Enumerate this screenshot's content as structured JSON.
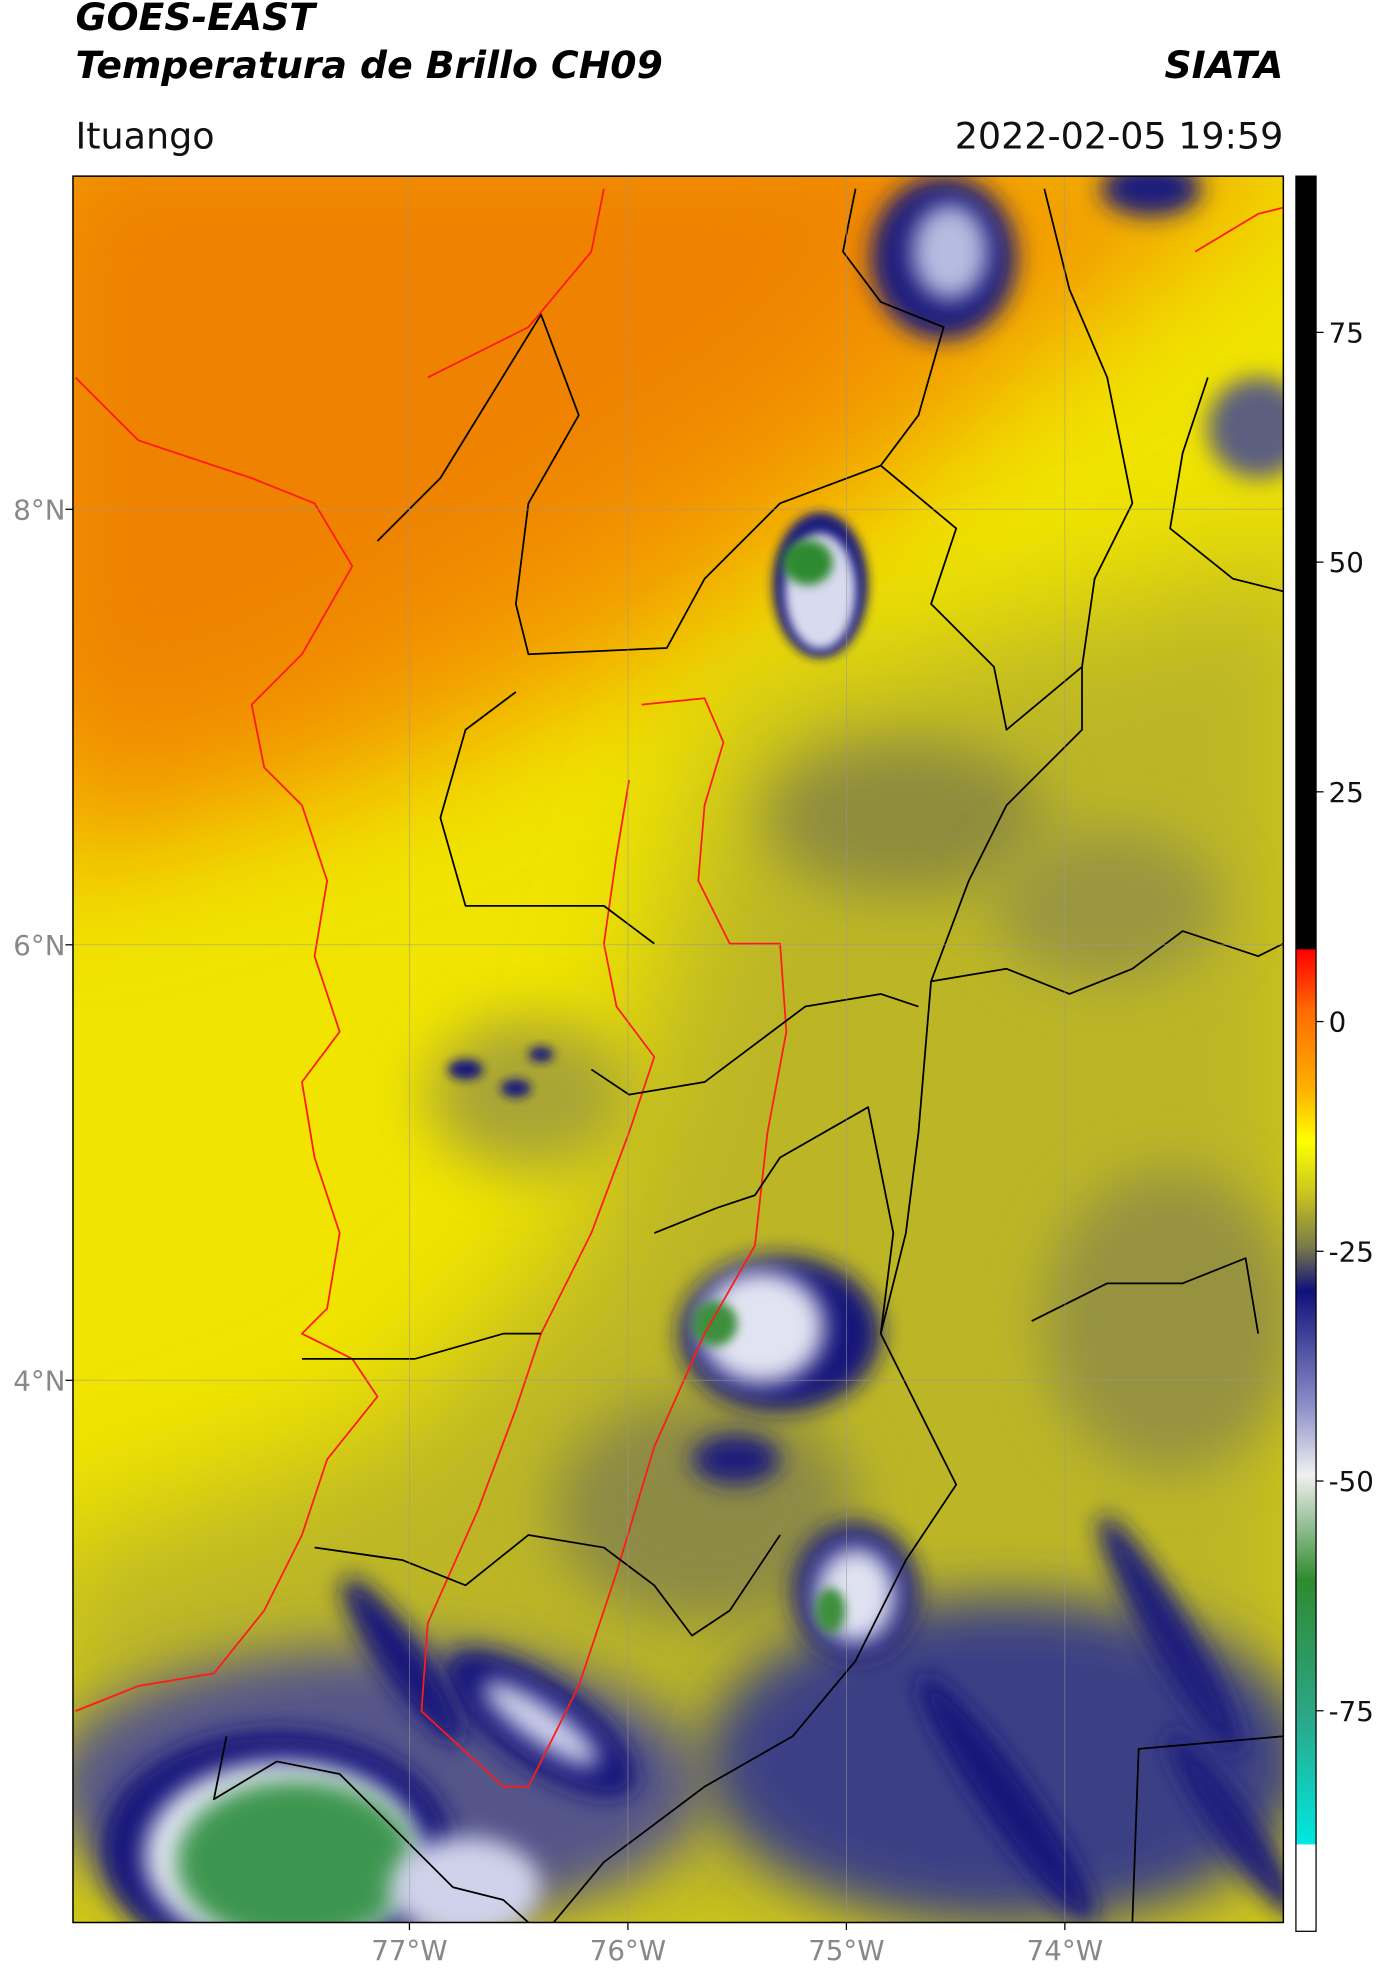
{
  "chart_data": {
    "type": "map",
    "satellite": "GOES-EAST",
    "title": "Temperatura de Brillo CH09",
    "source": "SIATA",
    "location": "Ituango",
    "timestamp": "2022-02-05 19:59",
    "xlim": [
      -78.54,
      -73.0
    ],
    "ylim": [
      1.51,
      9.53
    ],
    "xticks": [
      {
        "value": -77,
        "label": "77°W"
      },
      {
        "value": -76,
        "label": "76°W"
      },
      {
        "value": -75,
        "label": "75°W"
      },
      {
        "value": -74,
        "label": "74°W"
      }
    ],
    "yticks": [
      {
        "value": 4,
        "label": "4°N"
      },
      {
        "value": 6,
        "label": "6°N"
      },
      {
        "value": 8,
        "label": "8°N"
      }
    ],
    "grid": true,
    "colorbar": {
      "lim": [
        -99,
        92
      ],
      "ticks": [
        -75,
        -50,
        -25,
        0,
        25,
        50,
        75
      ]
    }
  }
}
